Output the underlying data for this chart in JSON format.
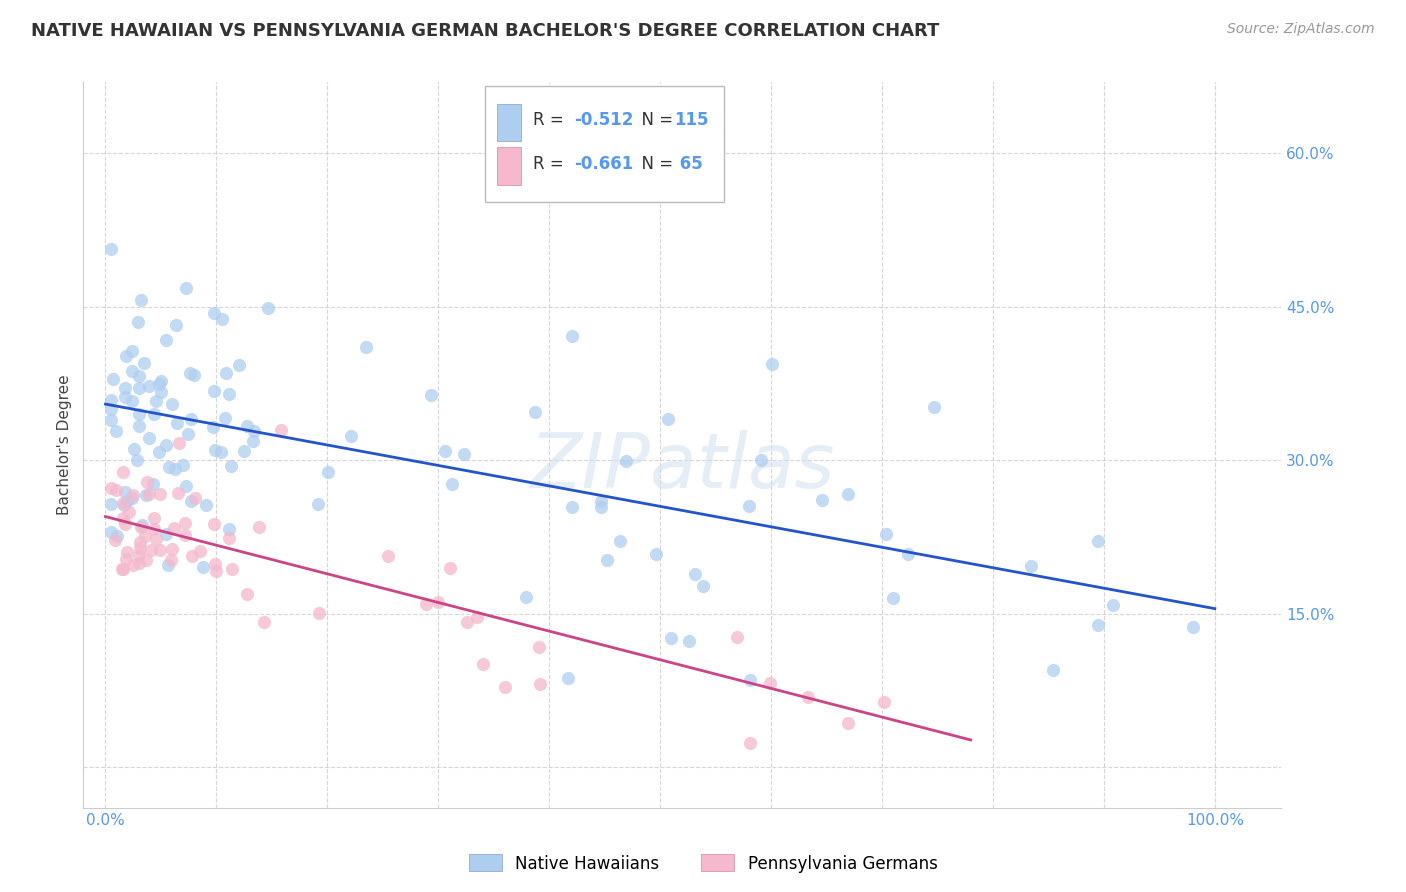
{
  "title": "NATIVE HAWAIIAN VS PENNSYLVANIA GERMAN BACHELOR'S DEGREE CORRELATION CHART",
  "source": "Source: ZipAtlas.com",
  "ylabel": "Bachelor's Degree",
  "blue_R": -0.512,
  "blue_N": 115,
  "pink_R": -0.661,
  "pink_N": 65,
  "blue_color": "#aecef0",
  "blue_line_color": "#2255cc",
  "pink_color": "#f5b8cc",
  "pink_line_color": "#cc4488",
  "watermark": "ZIPatlas",
  "legend_label_blue": "Native Hawaiians",
  "legend_label_pink": "Pennsylvania Germans",
  "blue_intercept": 0.355,
  "blue_slope": -0.2,
  "pink_intercept": 0.245,
  "pink_slope": -0.28,
  "title_fontsize": 13,
  "source_fontsize": 10,
  "tick_color": "#5599ee",
  "grid_color": "#cccccc",
  "grid_style": "--",
  "grid_alpha": 0.8,
  "accent_color": "#5599ee"
}
